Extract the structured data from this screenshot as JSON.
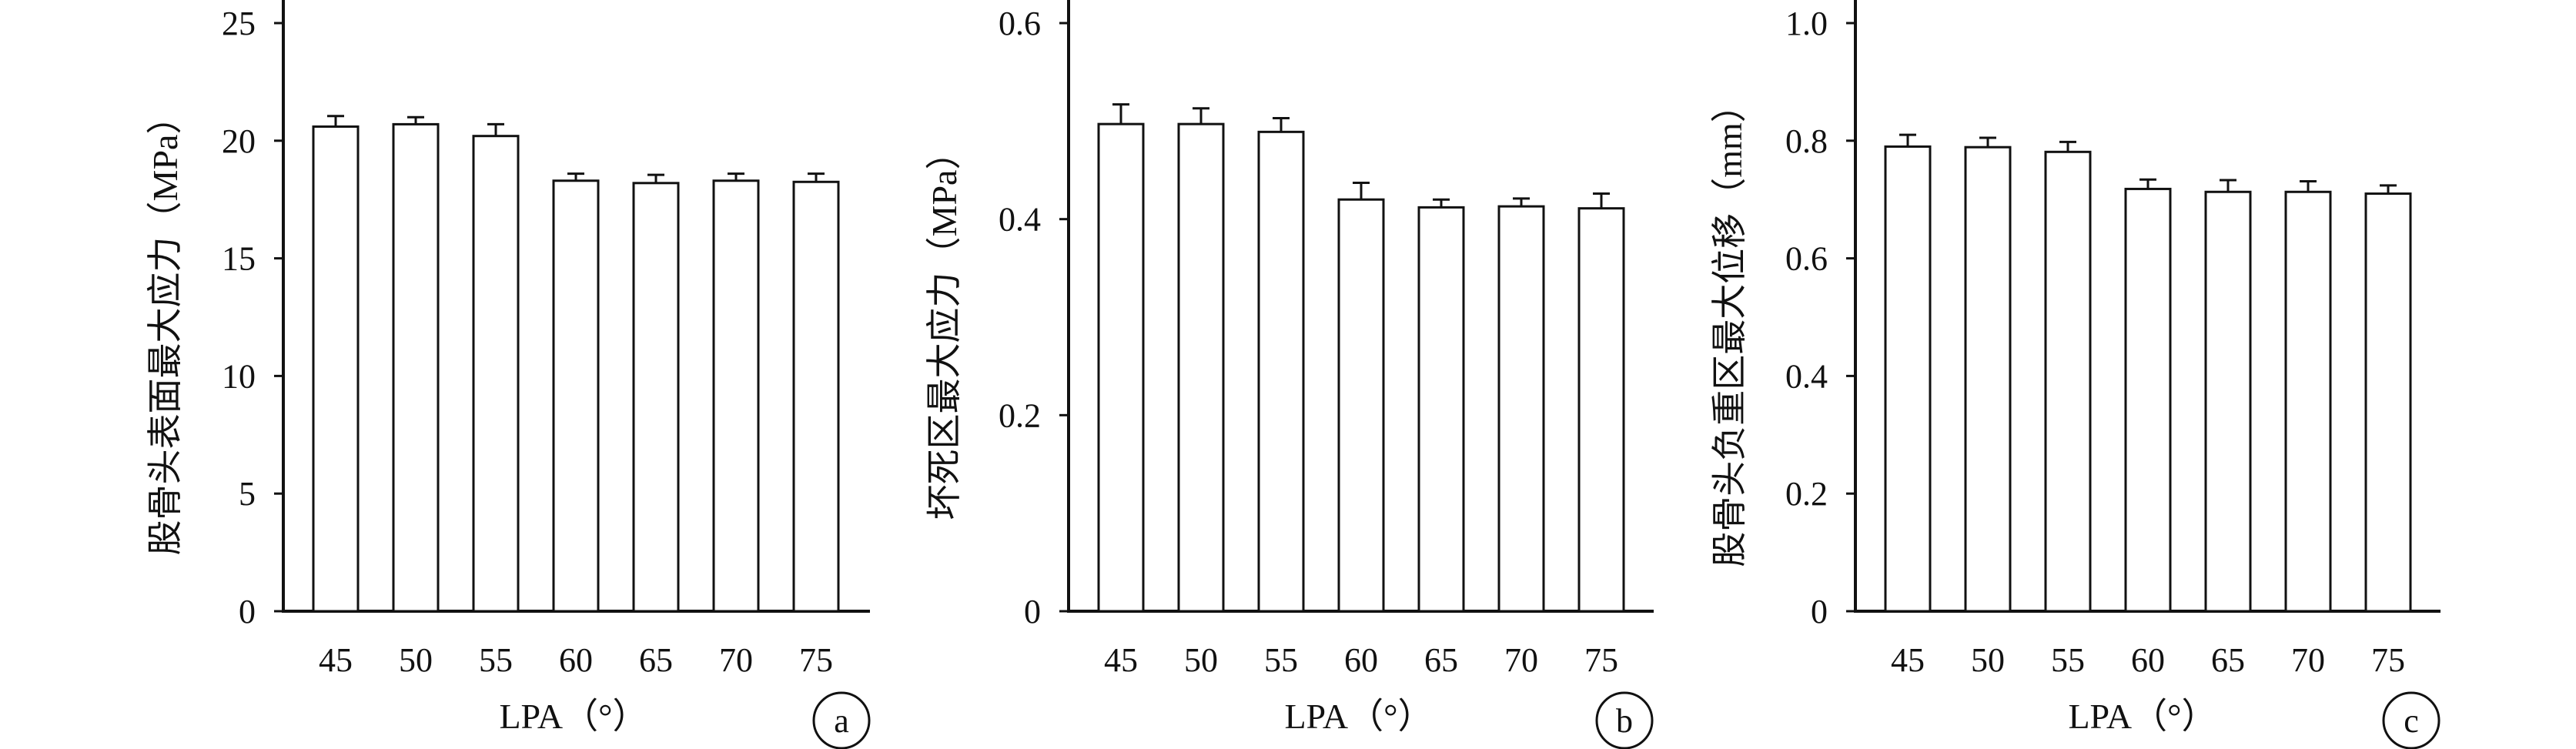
{
  "figure": {
    "panels": [
      {
        "letter": "a",
        "ylabel": "股骨头表面最大应力（MPa）",
        "xlabel": "LPA（°）"
      },
      {
        "letter": "b",
        "ylabel": "坏死区最大应力（MPa）",
        "xlabel": "LPA（°）"
      },
      {
        "letter": "c",
        "ylabel": "股骨头负重区最大位移（mm）",
        "xlabel": "LPA（°）"
      }
    ]
  },
  "chart_data": [
    {
      "type": "bar",
      "title": "",
      "xlabel": "LPA（°）",
      "ylabel": "股骨头表面最大应力（MPa）",
      "categories": [
        "45",
        "50",
        "55",
        "60",
        "65",
        "70",
        "75"
      ],
      "values": [
        20.6,
        20.7,
        20.2,
        18.3,
        18.2,
        18.3,
        18.25
      ],
      "errors": [
        0.45,
        0.3,
        0.5,
        0.3,
        0.35,
        0.3,
        0.35
      ],
      "ylim": [
        0,
        25
      ],
      "yticks": [
        "0",
        "5",
        "10",
        "15",
        "20",
        "25"
      ],
      "ytick_values": [
        0,
        5,
        10,
        15,
        20,
        25
      ],
      "grid": false,
      "panel_letter": "a"
    },
    {
      "type": "bar",
      "title": "",
      "xlabel": "LPA（°）",
      "ylabel": "坏死区最大应力（MPa）",
      "categories": [
        "45",
        "50",
        "55",
        "60",
        "65",
        "70",
        "75"
      ],
      "values": [
        0.497,
        0.497,
        0.489,
        0.42,
        0.412,
        0.413,
        0.411
      ],
      "errors": [
        0.02,
        0.016,
        0.014,
        0.017,
        0.008,
        0.008,
        0.015
      ],
      "ylim": [
        0,
        0.6
      ],
      "yticks": [
        "0",
        "0.2",
        "0.4",
        "0.6"
      ],
      "ytick_values": [
        0,
        0.2,
        0.4,
        0.6
      ],
      "grid": false,
      "panel_letter": "b"
    },
    {
      "type": "bar",
      "title": "",
      "xlabel": "LPA（°）",
      "ylabel": "股骨头负重区最大位移（mm）",
      "categories": [
        "45",
        "50",
        "55",
        "60",
        "65",
        "70",
        "75"
      ],
      "values": [
        0.79,
        0.789,
        0.781,
        0.718,
        0.713,
        0.713,
        0.71
      ],
      "errors": [
        0.02,
        0.016,
        0.017,
        0.016,
        0.02,
        0.018,
        0.014
      ],
      "ylim": [
        0,
        1.0
      ],
      "yticks": [
        "0",
        "0.2",
        "0.4",
        "0.6",
        "0.8",
        "1.0"
      ],
      "ytick_values": [
        0,
        0.2,
        0.4,
        0.6,
        0.8,
        1.0
      ],
      "grid": false,
      "panel_letter": "c"
    }
  ]
}
